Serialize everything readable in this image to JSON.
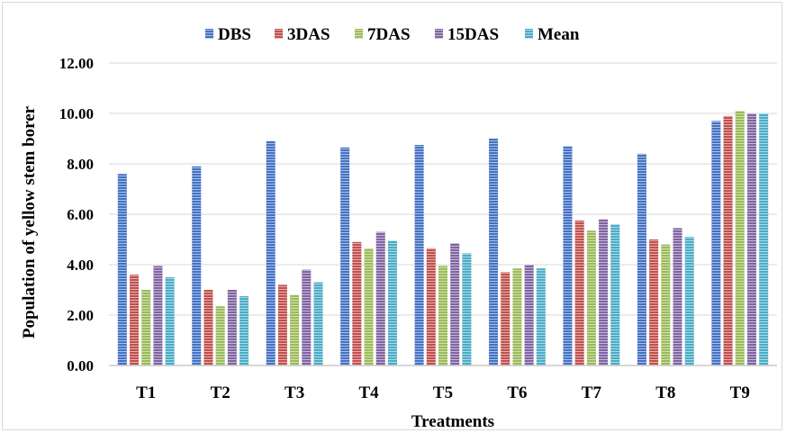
{
  "chart_data": {
    "type": "bar",
    "title": "",
    "xlabel": "Treatments",
    "ylabel": "Population of yellow stem borer",
    "categories": [
      "T1",
      "T2",
      "T3",
      "T4",
      "T5",
      "T6",
      "T7",
      "T8",
      "T9"
    ],
    "ylim": [
      0,
      12
    ],
    "yticks": [
      "0.00",
      "2.00",
      "4.00",
      "6.00",
      "8.00",
      "10.00",
      "12.00"
    ],
    "grid": true,
    "legend_position": "top",
    "series": [
      {
        "name": "DBS",
        "color": "#4472c4",
        "values": [
          7.6,
          7.9,
          8.9,
          8.65,
          8.75,
          9.0,
          8.7,
          8.4,
          9.7
        ]
      },
      {
        "name": "3DAS",
        "color": "#c0504d",
        "values": [
          3.6,
          3.0,
          3.2,
          4.9,
          4.65,
          3.7,
          5.75,
          5.0,
          9.9
        ]
      },
      {
        "name": "7DAS",
        "color": "#9bbb59",
        "values": [
          3.0,
          2.35,
          2.8,
          4.65,
          3.95,
          3.85,
          5.35,
          4.8,
          10.1
        ]
      },
      {
        "name": "15DAS",
        "color": "#8064a2",
        "values": [
          3.95,
          3.0,
          3.8,
          5.3,
          4.85,
          4.0,
          5.8,
          5.45,
          10.0
        ]
      },
      {
        "name": "Mean",
        "color": "#4bacc6",
        "values": [
          3.5,
          2.75,
          3.3,
          4.95,
          4.45,
          3.85,
          5.6,
          5.1,
          10.0
        ]
      }
    ]
  }
}
